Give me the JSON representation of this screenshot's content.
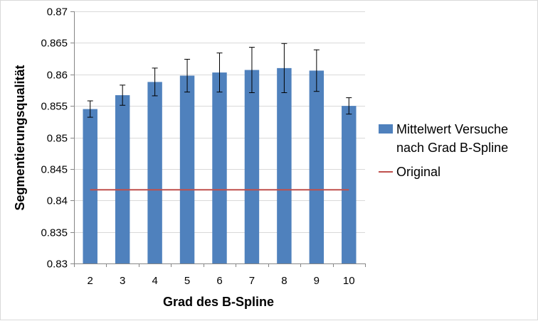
{
  "chart_data": {
    "type": "bar",
    "title": "",
    "xlabel": "Grad des B-Spline",
    "ylabel": "Segmentierungsqualität",
    "categories": [
      "2",
      "3",
      "4",
      "5",
      "6",
      "7",
      "8",
      "9",
      "10"
    ],
    "ylim": [
      0.83,
      0.87
    ],
    "yticks": [
      "0.83",
      "0.835",
      "0.84",
      "0.845",
      "0.85",
      "0.855",
      "0.86",
      "0.865",
      "0.87"
    ],
    "grid": true,
    "legend_position": "right",
    "series": [
      {
        "name": "Mittelwert Versuche nach Grad B-Spline",
        "legend_lines": [
          "Mittelwert Versuche",
          "nach Grad B-Spline"
        ],
        "type": "bar",
        "color": "#4f81bd",
        "values": [
          0.8545,
          0.8567,
          0.8588,
          0.8598,
          0.8603,
          0.8607,
          0.861,
          0.8606,
          0.855
        ],
        "error": [
          0.0013,
          0.0016,
          0.0022,
          0.0026,
          0.0031,
          0.0036,
          0.0039,
          0.0033,
          0.0013
        ]
      },
      {
        "name": "Original",
        "type": "line",
        "color": "#c0504d",
        "values": [
          0.8417,
          0.8417,
          0.8417,
          0.8417,
          0.8417,
          0.8417,
          0.8417,
          0.8417,
          0.8417
        ]
      }
    ]
  }
}
